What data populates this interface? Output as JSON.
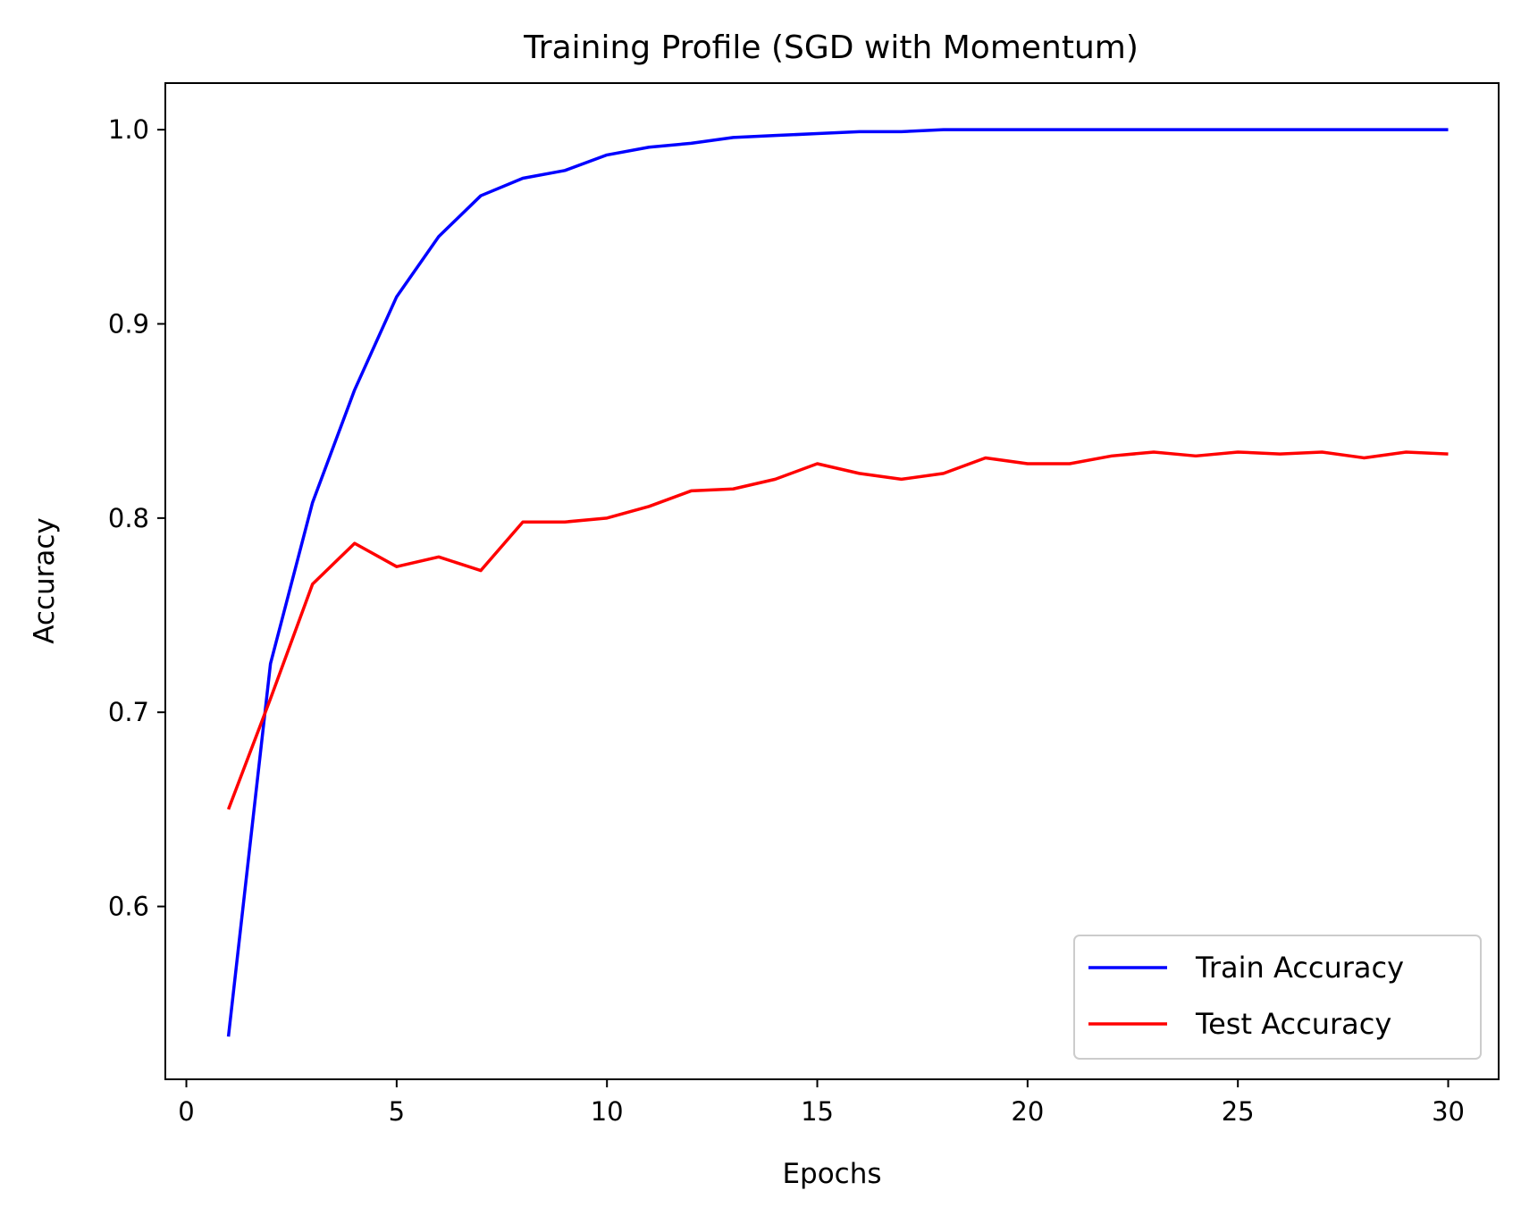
{
  "chart_data": {
    "type": "line",
    "title": "Training Profile (SGD with Momentum)",
    "xlabel": "Epochs",
    "ylabel": "Accuracy",
    "xlim": [
      -0.5,
      31.2
    ],
    "ylim": [
      0.511,
      1.024
    ],
    "xticks": [
      0,
      5,
      10,
      15,
      20,
      25,
      30
    ],
    "yticks": [
      0.6,
      0.7,
      0.8,
      0.9,
      1.0
    ],
    "xtick_labels": [
      "0",
      "5",
      "10",
      "15",
      "20",
      "25",
      "30"
    ],
    "ytick_labels": [
      "0.6",
      "0.7",
      "0.8",
      "0.9",
      "1.0"
    ],
    "grid": false,
    "legend_position": "bottom-right",
    "x": [
      1,
      2,
      3,
      4,
      5,
      6,
      7,
      8,
      9,
      10,
      11,
      12,
      13,
      14,
      15,
      16,
      17,
      18,
      19,
      20,
      21,
      22,
      23,
      24,
      25,
      26,
      27,
      28,
      29,
      30
    ],
    "series": [
      {
        "name": "Train Accuracy",
        "color": "#0000ff",
        "values": [
          0.533,
          0.725,
          0.808,
          0.866,
          0.914,
          0.945,
          0.966,
          0.975,
          0.979,
          0.987,
          0.991,
          0.993,
          0.996,
          0.997,
          0.998,
          0.999,
          0.999,
          1.0,
          1.0,
          1.0,
          1.0,
          1.0,
          1.0,
          1.0,
          1.0,
          1.0,
          1.0,
          1.0,
          1.0,
          1.0
        ]
      },
      {
        "name": "Test Accuracy",
        "color": "#ff0000",
        "values": [
          0.65,
          0.707,
          0.766,
          0.787,
          0.775,
          0.78,
          0.773,
          0.798,
          0.798,
          0.8,
          0.806,
          0.814,
          0.815,
          0.82,
          0.828,
          0.823,
          0.82,
          0.823,
          0.831,
          0.828,
          0.828,
          0.832,
          0.834,
          0.832,
          0.834,
          0.833,
          0.834,
          0.831,
          0.834,
          0.833
        ]
      }
    ]
  }
}
